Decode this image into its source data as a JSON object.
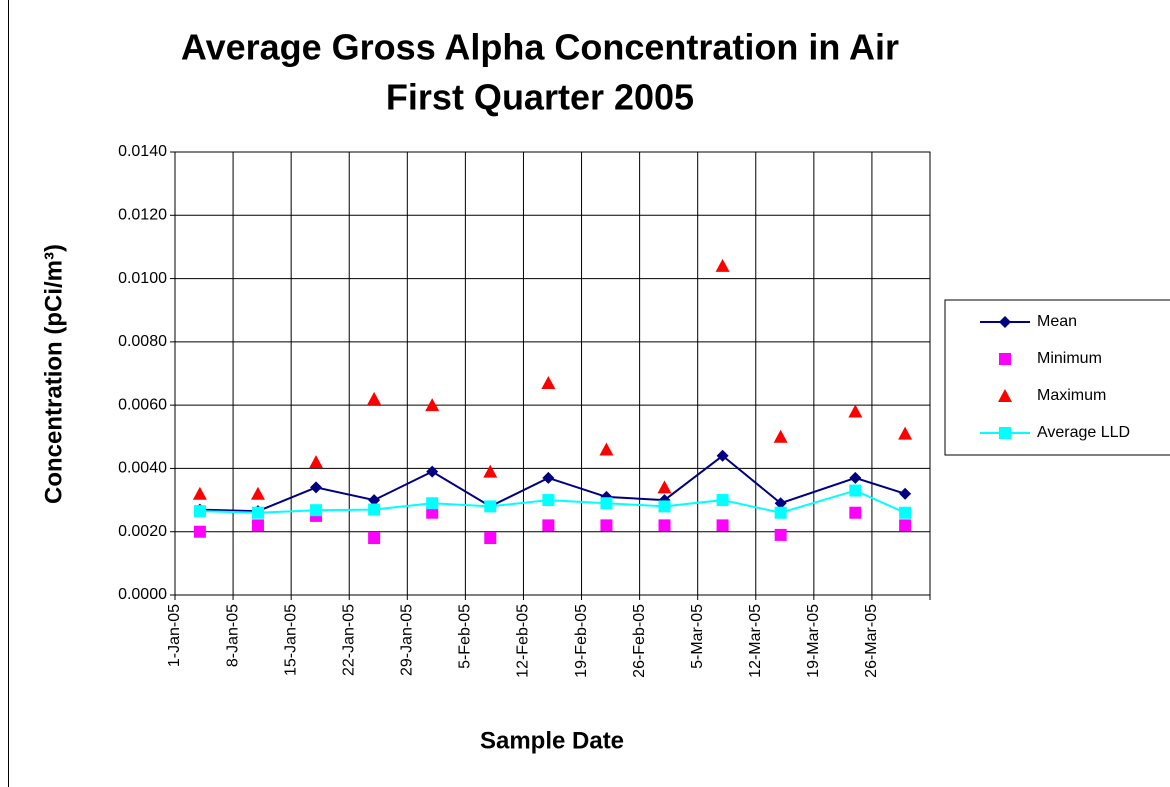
{
  "chart_data": {
    "type": "scatter",
    "title": [
      "Average Gross Alpha Concentration in Air",
      "First Quarter 2005"
    ],
    "x_label": "Sample Date",
    "y_label": "Concentration (pCi/m³)",
    "x": [
      "2005-01-04",
      "2005-01-11",
      "2005-01-18",
      "2005-01-25",
      "2005-02-01",
      "2005-02-08",
      "2005-02-15",
      "2005-02-22",
      "2005-03-01",
      "2005-03-08",
      "2005-03-15",
      "2005-03-24",
      "2005-03-30"
    ],
    "series": [
      {
        "name": "Mean",
        "color": "#000080",
        "marker": "diamond",
        "line": true,
        "values": [
          0.0027,
          0.00265,
          0.0034,
          0.003,
          0.0039,
          0.0028,
          0.0037,
          0.0031,
          0.003,
          0.0044,
          0.0029,
          0.0037,
          0.0032
        ]
      },
      {
        "name": "Minimum",
        "color": "#ff00ff",
        "marker": "square",
        "line": false,
        "values": [
          0.002,
          0.0022,
          0.0025,
          0.0018,
          0.0026,
          0.0018,
          0.0022,
          0.0022,
          0.0022,
          0.0022,
          0.0019,
          0.0026,
          0.0022
        ]
      },
      {
        "name": "Maximum",
        "color": "#ff0000",
        "marker": "triangle",
        "line": false,
        "values": [
          0.0032,
          0.0032,
          0.0042,
          0.0062,
          0.006,
          0.0039,
          0.0067,
          0.0046,
          0.0034,
          0.0104,
          0.005,
          0.0058,
          0.0051
        ]
      },
      {
        "name": " Average LLD",
        "color": "#00ffff",
        "marker": "square",
        "line": true,
        "values": [
          0.00265,
          0.0026,
          0.00268,
          0.0027,
          0.0029,
          0.0028,
          0.003,
          0.0029,
          0.0028,
          0.003,
          0.0026,
          0.0033,
          0.0026
        ]
      }
    ],
    "xlim": [
      "2005-01-01",
      "2005-04-02"
    ],
    "xticks": [
      {
        "value": "2005-01-01",
        "label": "1-Jan-05"
      },
      {
        "value": "2005-01-08",
        "label": "8-Jan-05"
      },
      {
        "value": "2005-01-15",
        "label": "15-Jan-05"
      },
      {
        "value": "2005-01-22",
        "label": "22-Jan-05"
      },
      {
        "value": "2005-01-29",
        "label": "29-Jan-05"
      },
      {
        "value": "2005-02-05",
        "label": "5-Feb-05"
      },
      {
        "value": "2005-02-12",
        "label": "12-Feb-05"
      },
      {
        "value": "2005-02-19",
        "label": "19-Feb-05"
      },
      {
        "value": "2005-02-26",
        "label": "26-Feb-05"
      },
      {
        "value": "2005-03-05",
        "label": "5-Mar-05"
      },
      {
        "value": "2005-03-12",
        "label": "12-Mar-05"
      },
      {
        "value": "2005-03-19",
        "label": "19-Mar-05"
      },
      {
        "value": "2005-03-26",
        "label": "26-Mar-05"
      },
      {
        "value": "2005-04-02",
        "label": null
      }
    ],
    "ylim": [
      0,
      0.014
    ],
    "yticks": [
      {
        "value": 0,
        "label": "0.0000"
      },
      {
        "value": 0.002,
        "label": "0.0020"
      },
      {
        "value": 0.004,
        "label": "0.0040"
      },
      {
        "value": 0.006,
        "label": "0.0060"
      },
      {
        "value": 0.008,
        "label": "0.0080"
      },
      {
        "value": 0.01,
        "label": "0.0100"
      },
      {
        "value": 0.012,
        "label": "0.0120"
      },
      {
        "value": 0.014,
        "label": "0.0140"
      }
    ],
    "grid": true,
    "legend": "right"
  }
}
